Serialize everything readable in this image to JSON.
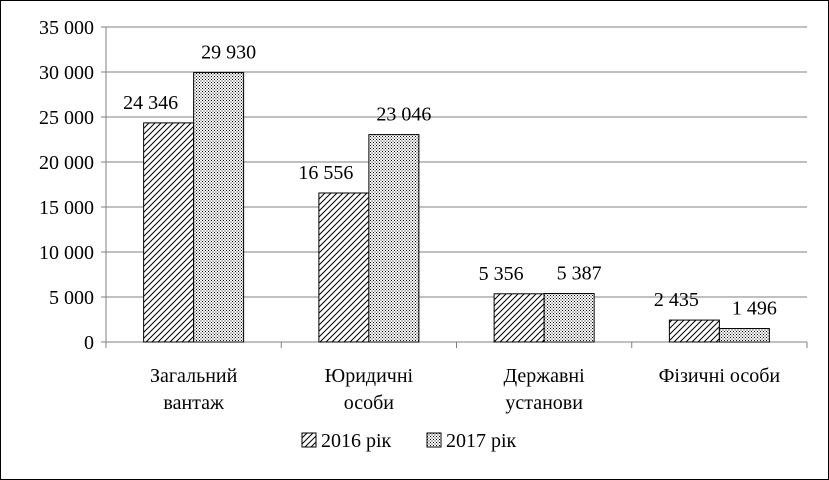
{
  "chart_data": {
    "type": "bar",
    "categories": [
      [
        "Загальний",
        "вантаж"
      ],
      [
        "Юридичні",
        "особи"
      ],
      [
        "Державні",
        "установи"
      ],
      [
        "Фізичні особи"
      ]
    ],
    "series": [
      {
        "name": "2016 рік",
        "values": [
          24346,
          16556,
          5356,
          2435
        ],
        "labels": [
          "24 346",
          "16 556",
          "5 356",
          "2 435"
        ],
        "pattern": "diagonal-stripes"
      },
      {
        "name": "2017 рік",
        "values": [
          29930,
          23046,
          5387,
          1496
        ],
        "labels": [
          "29 930",
          "23 046",
          "5 387",
          "1 496"
        ],
        "pattern": "dotted"
      }
    ],
    "ylim": [
      0,
      35000
    ],
    "yticks": [
      0,
      5000,
      10000,
      15000,
      20000,
      25000,
      30000,
      35000
    ],
    "ytick_labels": [
      "0",
      "5 000",
      "10 000",
      "15 000",
      "20 000",
      "25 000",
      "30 000",
      "35 000"
    ],
    "grid": true,
    "legend_position": "bottom",
    "colors": {
      "bar_outline": "#000000",
      "gridline": "#808080",
      "background": "#ffffff"
    }
  }
}
